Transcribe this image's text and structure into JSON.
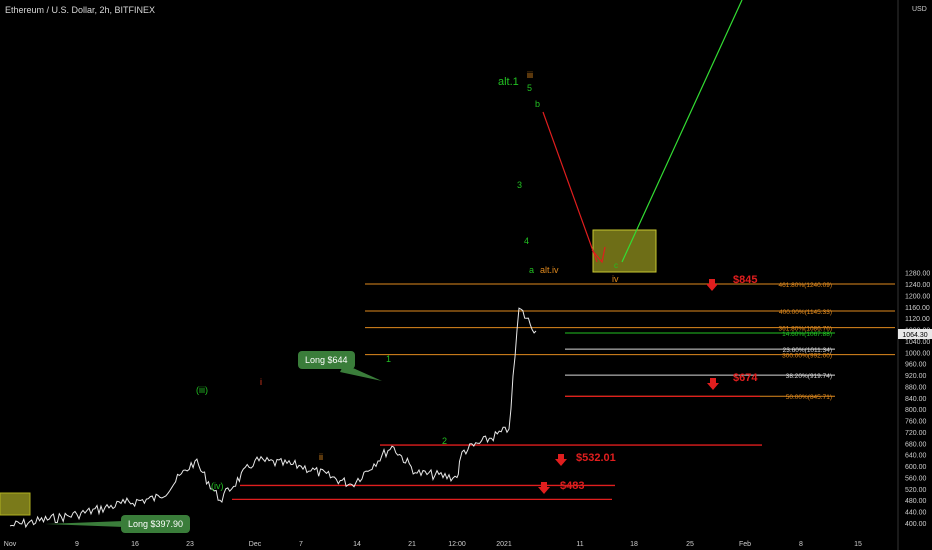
{
  "header": {
    "title": "Ethereum / U.S. Dollar, 2h, BITFINEX",
    "currency": "USD"
  },
  "price_marker": "1064.30",
  "chart_data": {
    "type": "line",
    "title": "Ethereum / U.S. Dollar, 2h, BITFINEX",
    "xlabel": "",
    "ylabel": "USD",
    "ylim": [
      375,
      1280
    ],
    "x_ticks": [
      "Nov",
      "9",
      "16",
      "23",
      "Dec",
      "7",
      "14",
      "21",
      "12:00",
      "2021",
      "11",
      "18",
      "25",
      "Feb",
      "8",
      "15"
    ],
    "y_ticks": [
      "400.00",
      "440.00",
      "480.00",
      "520.00",
      "560.00",
      "600.00",
      "640.00",
      "680.00",
      "720.00",
      "760.00",
      "800.00",
      "840.00",
      "880.00",
      "920.00",
      "960.00",
      "1000.00",
      "1040.00",
      "1080.00",
      "1120.00",
      "1160.00",
      "1200.00",
      "1240.00",
      "1280.00"
    ],
    "price_path": [
      {
        "x": "Nov",
        "y": 390
      },
      {
        "x": "9",
        "y": 430
      },
      {
        "x": "16",
        "y": 470
      },
      {
        "x": "16",
        "y": 490
      },
      {
        "x": "23",
        "y": 618
      },
      {
        "x": "23",
        "y": 480
      },
      {
        "x": "Dec",
        "y": 620
      },
      {
        "x": "7",
        "y": 600
      },
      {
        "x": "14",
        "y": 535
      },
      {
        "x": "21",
        "y": 670
      },
      {
        "x": "21",
        "y": 575
      },
      {
        "x": "12:00",
        "y": 560
      },
      {
        "x": "12:00",
        "y": 650
      },
      {
        "x": "2021",
        "y": 730
      },
      {
        "x": "2021",
        "y": 1155
      },
      {
        "x": "2021",
        "y": 1075
      }
    ],
    "fib_levels": [
      {
        "label": "461.80%(1240.09)",
        "value": 1240.09,
        "color": "#e08a1e"
      },
      {
        "label": "400.00%(1145.33)",
        "value": 1145.33,
        "color": "#e08a1e"
      },
      {
        "label": "361.80%(1086.76)",
        "value": 1086.76,
        "color": "#e08a1e"
      },
      {
        "label": "14.60%(1067.88)",
        "value": 1067.88,
        "color": "#22c022"
      },
      {
        "label": "23.60%(1011.34)",
        "value": 1011.34,
        "color": "#d8d8d8"
      },
      {
        "label": "300.00%(992.00)",
        "value": 992.0,
        "color": "#e08a1e"
      },
      {
        "label": "38.20%(919.74)",
        "value": 919.74,
        "color": "#d8d8d8"
      },
      {
        "label": "50.00%(845.71)",
        "value": 845.71,
        "color": "#e08a1e"
      }
    ],
    "targets": [
      {
        "label": "$845",
        "value": 845
      },
      {
        "label": "$674",
        "value": 674
      },
      {
        "label": "$532.01",
        "value": 532.01
      },
      {
        "label": "$483",
        "value": 483
      }
    ],
    "wave_labels": [
      {
        "text": "alt.1",
        "color": "#22c022"
      },
      {
        "text": "iii",
        "color": "#e08a1e"
      },
      {
        "text": "5",
        "color": "#22c022"
      },
      {
        "text": "b",
        "color": "#22c022"
      },
      {
        "text": "3",
        "color": "#22c022"
      },
      {
        "text": "4",
        "color": "#22c022"
      },
      {
        "text": "a",
        "color": "#22c022"
      },
      {
        "text": "alt.iv",
        "color": "#e08a1e"
      },
      {
        "text": "c",
        "color": "#22c022"
      },
      {
        "text": "iv",
        "color": "#e08a1e"
      },
      {
        "text": "1",
        "color": "#22c022"
      },
      {
        "text": "2",
        "color": "#22c022"
      },
      {
        "text": "i",
        "color": "#e03a1e"
      },
      {
        "text": "ii",
        "color": "#e08a1e"
      },
      {
        "text": "(iii)",
        "color": "#22c022"
      },
      {
        "text": "(iv)",
        "color": "#22c022"
      }
    ],
    "callouts": [
      {
        "text": "Long $644"
      },
      {
        "text": "Long $397.90"
      }
    ]
  }
}
